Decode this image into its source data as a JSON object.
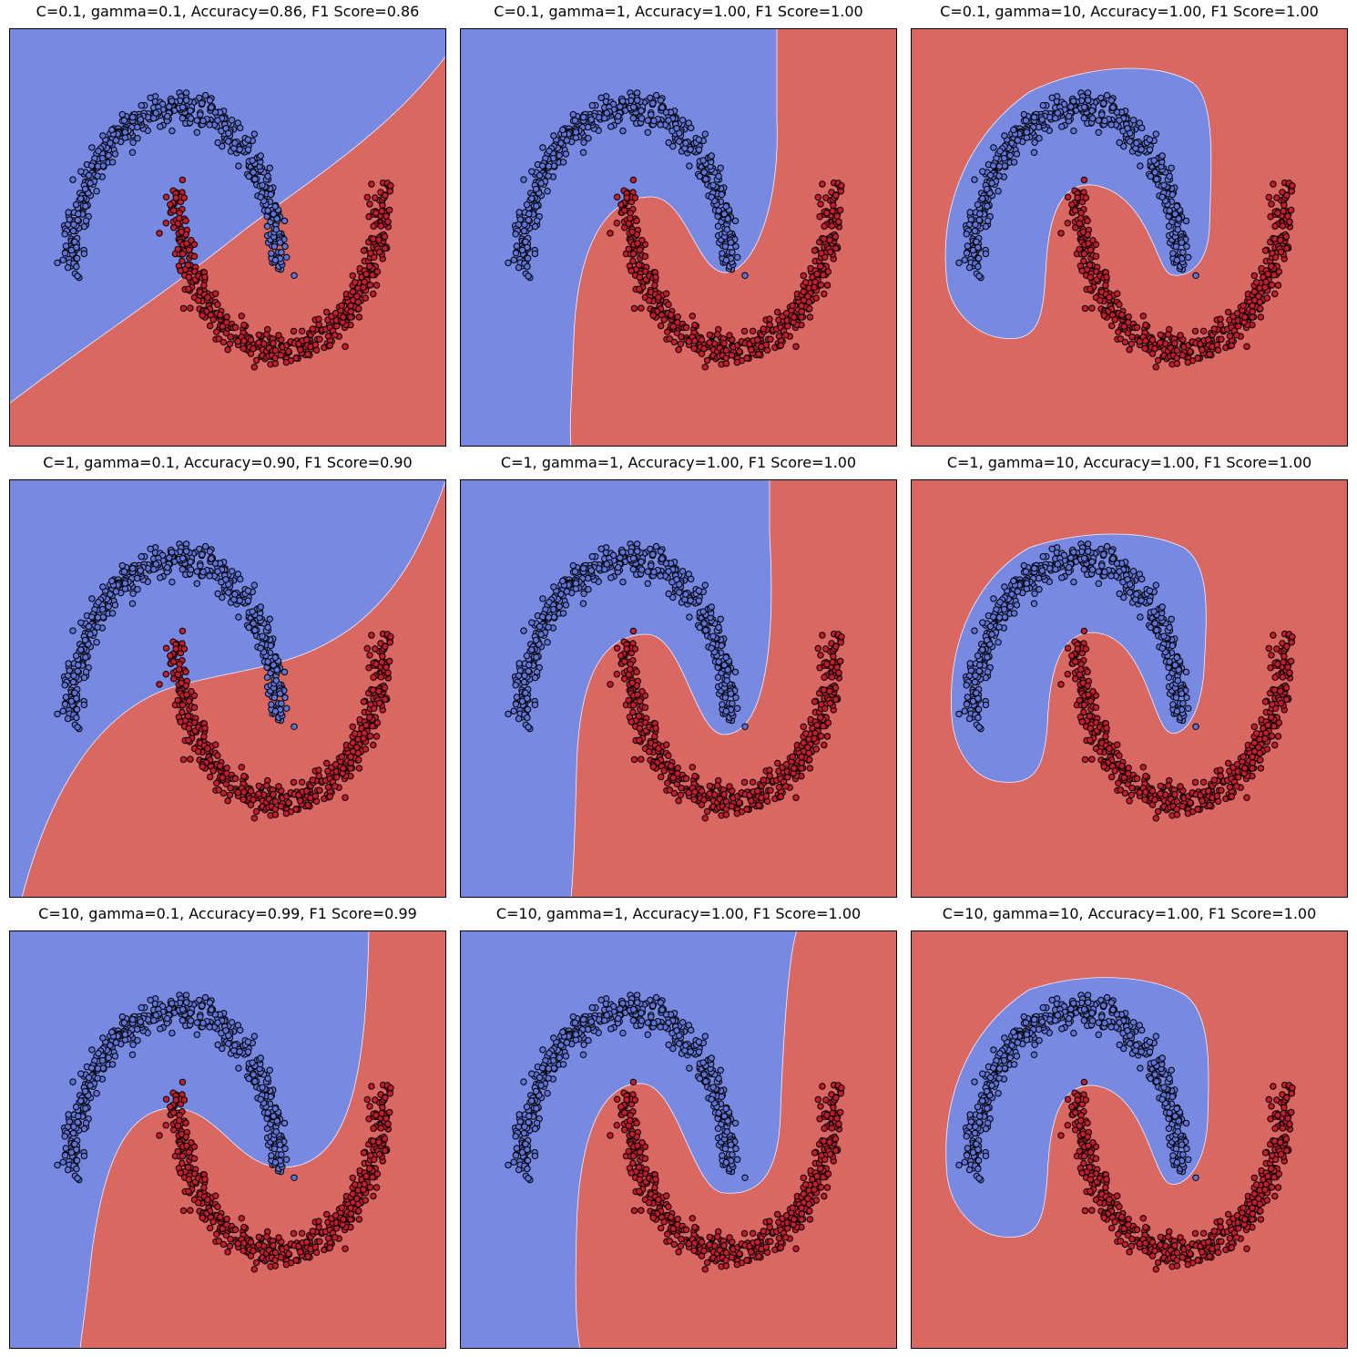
{
  "figure": {
    "region_colors": {
      "class_0": "#7789e0",
      "class_1": "#d96762"
    },
    "point_colors": {
      "class_0": "#5e74d8",
      "class_1": "#c41e2c",
      "edge": "#000000"
    }
  },
  "chart_data": [
    {
      "type": "scatter",
      "title": "C=0.1, gamma=0.1, Accuracy=0.86, F1 Score=0.86",
      "params": {
        "C": 0.1,
        "gamma": 0.1
      },
      "accuracy": 0.86,
      "f1_score": 0.86,
      "xlim": [
        -1.6,
        2.6
      ],
      "ylim": [
        -1.1,
        1.5
      ],
      "axes_ticks": false,
      "grid": false
    },
    {
      "type": "scatter",
      "title": "C=0.1, gamma=1, Accuracy=1.00, F1 Score=1.00",
      "params": {
        "C": 0.1,
        "gamma": 1
      },
      "accuracy": 1.0,
      "f1_score": 1.0,
      "xlim": [
        -1.6,
        2.6
      ],
      "ylim": [
        -1.1,
        1.5
      ],
      "axes_ticks": false,
      "grid": false
    },
    {
      "type": "scatter",
      "title": "C=0.1, gamma=10, Accuracy=1.00, F1 Score=1.00",
      "params": {
        "C": 0.1,
        "gamma": 10
      },
      "accuracy": 1.0,
      "f1_score": 1.0,
      "xlim": [
        -1.6,
        2.6
      ],
      "ylim": [
        -1.1,
        1.5
      ],
      "axes_ticks": false,
      "grid": false
    },
    {
      "type": "scatter",
      "title": "C=1, gamma=0.1, Accuracy=0.90, F1 Score=0.90",
      "params": {
        "C": 1,
        "gamma": 0.1
      },
      "accuracy": 0.9,
      "f1_score": 0.9,
      "xlim": [
        -1.6,
        2.6
      ],
      "ylim": [
        -1.1,
        1.5
      ],
      "axes_ticks": false,
      "grid": false
    },
    {
      "type": "scatter",
      "title": "C=1, gamma=1, Accuracy=1.00, F1 Score=1.00",
      "params": {
        "C": 1,
        "gamma": 1
      },
      "accuracy": 1.0,
      "f1_score": 1.0,
      "xlim": [
        -1.6,
        2.6
      ],
      "ylim": [
        -1.1,
        1.5
      ],
      "axes_ticks": false,
      "grid": false
    },
    {
      "type": "scatter",
      "title": "C=1, gamma=10, Accuracy=1.00, F1 Score=1.00",
      "params": {
        "C": 1,
        "gamma": 10
      },
      "accuracy": 1.0,
      "f1_score": 1.0,
      "xlim": [
        -1.6,
        2.6
      ],
      "ylim": [
        -1.1,
        1.5
      ],
      "axes_ticks": false,
      "grid": false
    },
    {
      "type": "scatter",
      "title": "C=10, gamma=0.1, Accuracy=0.99, F1 Score=0.99",
      "params": {
        "C": 10,
        "gamma": 0.1
      },
      "accuracy": 0.99,
      "f1_score": 0.99,
      "xlim": [
        -1.6,
        2.6
      ],
      "ylim": [
        -1.1,
        1.5
      ],
      "axes_ticks": false,
      "grid": false
    },
    {
      "type": "scatter",
      "title": "C=10, gamma=1, Accuracy=1.00, F1 Score=1.00",
      "params": {
        "C": 10,
        "gamma": 1
      },
      "accuracy": 1.0,
      "f1_score": 1.0,
      "xlim": [
        -1.6,
        2.6
      ],
      "ylim": [
        -1.1,
        1.5
      ],
      "axes_ticks": false,
      "grid": false
    },
    {
      "type": "scatter",
      "title": "C=10, gamma=10, Accuracy=1.00, F1 Score=1.00",
      "params": {
        "C": 10,
        "gamma": 10
      },
      "accuracy": 1.0,
      "f1_score": 1.0,
      "xlim": [
        -1.6,
        2.6
      ],
      "ylim": [
        -1.1,
        1.5
      ],
      "axes_ticks": false,
      "grid": false
    }
  ]
}
